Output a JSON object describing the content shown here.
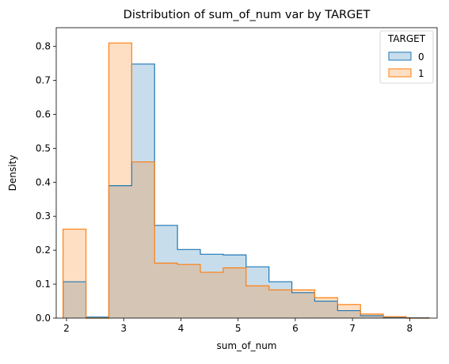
{
  "chart_data": {
    "type": "histogram",
    "title": "Distribution of sum_of_num var by TARGET",
    "xlabel": "sum_of_num",
    "ylabel": "Density",
    "xlim": [
      1.82,
      8.48
    ],
    "ylim": [
      0,
      0.855
    ],
    "xticks": [
      2,
      3,
      4,
      5,
      6,
      7,
      8
    ],
    "yticks": [
      0.0,
      0.1,
      0.2,
      0.3,
      0.4,
      0.5,
      0.6,
      0.7,
      0.8
    ],
    "xtick_labels": [
      "2",
      "3",
      "4",
      "5",
      "6",
      "7",
      "8"
    ],
    "ytick_labels": [
      "0.0",
      "0.1",
      "0.2",
      "0.3",
      "0.4",
      "0.5",
      "0.6",
      "0.7",
      "0.8"
    ],
    "bin_edges": [
      1.94,
      2.34,
      2.74,
      3.14,
      3.54,
      3.94,
      4.34,
      4.74,
      5.14,
      5.54,
      5.94,
      6.34,
      6.74,
      7.14,
      7.54,
      7.94,
      8.34
    ],
    "legend": {
      "title": "TARGET",
      "placement": "upper-right"
    },
    "grid": false,
    "series": [
      {
        "name": "0",
        "color": "#1f77b4",
        "values": [
          0.107,
          0.003,
          0.39,
          0.748,
          0.273,
          0.202,
          0.188,
          0.186,
          0.151,
          0.107,
          0.075,
          0.05,
          0.022,
          0.007,
          0.002,
          0.001
        ]
      },
      {
        "name": "1",
        "color": "#ff7f0e",
        "values": [
          0.262,
          0.0,
          0.81,
          0.46,
          0.162,
          0.158,
          0.135,
          0.148,
          0.095,
          0.083,
          0.083,
          0.06,
          0.04,
          0.012,
          0.004,
          0.0
        ]
      }
    ]
  }
}
